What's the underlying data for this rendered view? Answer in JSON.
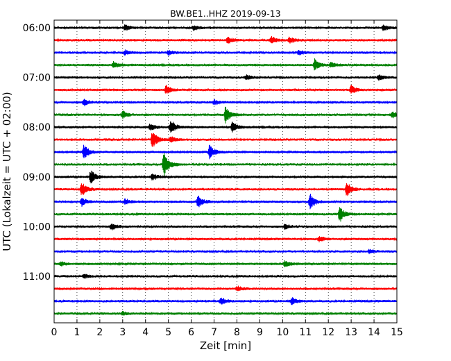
{
  "chart_data": {
    "type": "line",
    "title": "BW.BE1..HHZ 2019-09-13",
    "xlabel": "Zeit  [min]",
    "ylabel": "UTC (Lokalzeit = UTC + 02:00)",
    "xlim": [
      0,
      15
    ],
    "x_ticks": [
      "0",
      "1",
      "2",
      "3",
      "4",
      "5",
      "6",
      "7",
      "8",
      "9",
      "10",
      "11",
      "12",
      "13",
      "14",
      "15"
    ],
    "y_tick_labels": [
      "06:00",
      "07:00",
      "08:00",
      "09:00",
      "10:00",
      "11:00"
    ],
    "y_tick_rows": [
      0,
      4,
      8,
      12,
      16,
      20
    ],
    "trace_colors": [
      "#000000",
      "#ff0000",
      "#0000ff",
      "#008000"
    ],
    "trace_start": "06:00",
    "trace_interval_min": 15,
    "trace_count": 24,
    "grid": "vertical dotted",
    "events": [
      {
        "row": 0,
        "t": 3.1,
        "amp": 0.35
      },
      {
        "row": 0,
        "t": 6.1,
        "amp": 0.3
      },
      {
        "row": 0,
        "t": 14.4,
        "amp": 0.35
      },
      {
        "row": 1,
        "t": 7.6,
        "amp": 0.4
      },
      {
        "row": 1,
        "t": 9.5,
        "amp": 0.45
      },
      {
        "row": 1,
        "t": 10.3,
        "amp": 0.4
      },
      {
        "row": 2,
        "t": 3.1,
        "amp": 0.3
      },
      {
        "row": 2,
        "t": 5.0,
        "amp": 0.3
      },
      {
        "row": 2,
        "t": 10.7,
        "amp": 0.3
      },
      {
        "row": 3,
        "t": 2.6,
        "amp": 0.45
      },
      {
        "row": 3,
        "t": 11.4,
        "amp": 0.65
      },
      {
        "row": 3,
        "t": 12.1,
        "amp": 0.3
      },
      {
        "row": 4,
        "t": 14.2,
        "amp": 0.35
      },
      {
        "row": 4,
        "t": 8.4,
        "amp": 0.3
      },
      {
        "row": 5,
        "t": 4.9,
        "amp": 0.5
      },
      {
        "row": 5,
        "t": 13.0,
        "amp": 0.55
      },
      {
        "row": 6,
        "t": 1.3,
        "amp": 0.4
      },
      {
        "row": 6,
        "t": 7.0,
        "amp": 0.3
      },
      {
        "row": 7,
        "t": 3.0,
        "amp": 0.45
      },
      {
        "row": 7,
        "t": 7.5,
        "amp": 1.0
      },
      {
        "row": 7,
        "t": 14.8,
        "amp": 0.4
      },
      {
        "row": 8,
        "t": 4.2,
        "amp": 0.4
      },
      {
        "row": 8,
        "t": 5.1,
        "amp": 0.9
      },
      {
        "row": 8,
        "t": 7.8,
        "amp": 0.6
      },
      {
        "row": 9,
        "t": 4.3,
        "amp": 1.1
      },
      {
        "row": 9,
        "t": 5.1,
        "amp": 0.35
      },
      {
        "row": 10,
        "t": 1.3,
        "amp": 0.9
      },
      {
        "row": 10,
        "t": 6.8,
        "amp": 0.85
      },
      {
        "row": 11,
        "t": 4.8,
        "amp": 1.0
      },
      {
        "row": 11,
        "t": 4.8,
        "amp": 0.6
      },
      {
        "row": 12,
        "t": 1.6,
        "amp": 0.8
      },
      {
        "row": 12,
        "t": 4.3,
        "amp": 0.4
      },
      {
        "row": 13,
        "t": 1.2,
        "amp": 0.85
      },
      {
        "row": 13,
        "t": 12.8,
        "amp": 0.9
      },
      {
        "row": 14,
        "t": 1.2,
        "amp": 0.5
      },
      {
        "row": 14,
        "t": 6.3,
        "amp": 0.7
      },
      {
        "row": 14,
        "t": 11.2,
        "amp": 0.9
      },
      {
        "row": 14,
        "t": 3.1,
        "amp": 0.35
      },
      {
        "row": 15,
        "t": 12.5,
        "amp": 1.0
      },
      {
        "row": 16,
        "t": 2.5,
        "amp": 0.45
      },
      {
        "row": 16,
        "t": 10.1,
        "amp": 0.3
      },
      {
        "row": 17,
        "t": 11.6,
        "amp": 0.35
      },
      {
        "row": 18,
        "t": 13.8,
        "amp": 0.25
      },
      {
        "row": 19,
        "t": 10.1,
        "amp": 0.4
      },
      {
        "row": 19,
        "t": 0.3,
        "amp": 0.25
      },
      {
        "row": 20,
        "t": 1.3,
        "amp": 0.25
      },
      {
        "row": 21,
        "t": 8.0,
        "amp": 0.3
      },
      {
        "row": 22,
        "t": 7.3,
        "amp": 0.4
      },
      {
        "row": 22,
        "t": 10.4,
        "amp": 0.4
      },
      {
        "row": 23,
        "t": 3.0,
        "amp": 0.2
      }
    ]
  }
}
